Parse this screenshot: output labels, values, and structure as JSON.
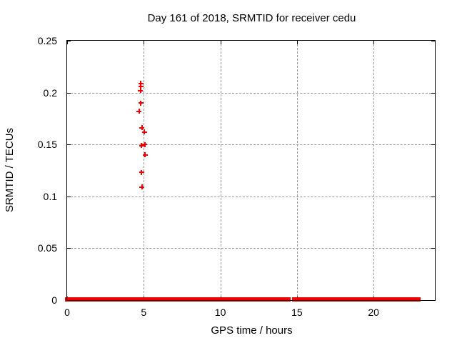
{
  "window": {
    "background": "#ffffff"
  },
  "chart_data": {
    "type": "scatter",
    "title": "Day 161 of 2018, SRMTID for receiver cedu",
    "xlabel": "GPS time / hours",
    "ylabel": "SRMTID / TECUs",
    "xlim": [
      0,
      24
    ],
    "ylim": [
      0,
      0.25
    ],
    "xticks": [
      0,
      5,
      10,
      15,
      20
    ],
    "xtick_labels": [
      "0",
      "5",
      "10",
      "15",
      "20"
    ],
    "yticks": [
      0,
      0.05,
      0.1,
      0.15,
      0.2,
      0.25
    ],
    "ytick_labels": [
      "0",
      "0.05",
      "0.1",
      "0.15",
      "0.2",
      "0.25"
    ],
    "grid": true,
    "legend": "none",
    "marker": "plus",
    "colors": {
      "marker": "#ee0000",
      "grid": "#999999",
      "axis": "#000000",
      "text": "#000000"
    },
    "series": [
      {
        "name": "SRMTID",
        "color": "#ee0000",
        "points": [
          [
            4.81,
            0.209
          ],
          [
            4.81,
            0.206
          ],
          [
            4.79,
            0.202
          ],
          [
            4.81,
            0.19
          ],
          [
            4.7,
            0.182
          ],
          [
            4.89,
            0.166
          ],
          [
            5.05,
            0.162
          ],
          [
            4.86,
            0.149
          ],
          [
            5.07,
            0.15
          ],
          [
            5.09,
            0.14
          ],
          [
            4.85,
            0.123
          ],
          [
            4.87,
            0.109
          ]
        ],
        "zero_value_runs_hours": [
          [
            0,
            2.32
          ],
          [
            2.45,
            4.76
          ],
          [
            4.97,
            14.45
          ],
          [
            14.82,
            15.56
          ],
          [
            15.7,
            16.05
          ],
          [
            16.26,
            22.95
          ]
        ]
      }
    ]
  }
}
